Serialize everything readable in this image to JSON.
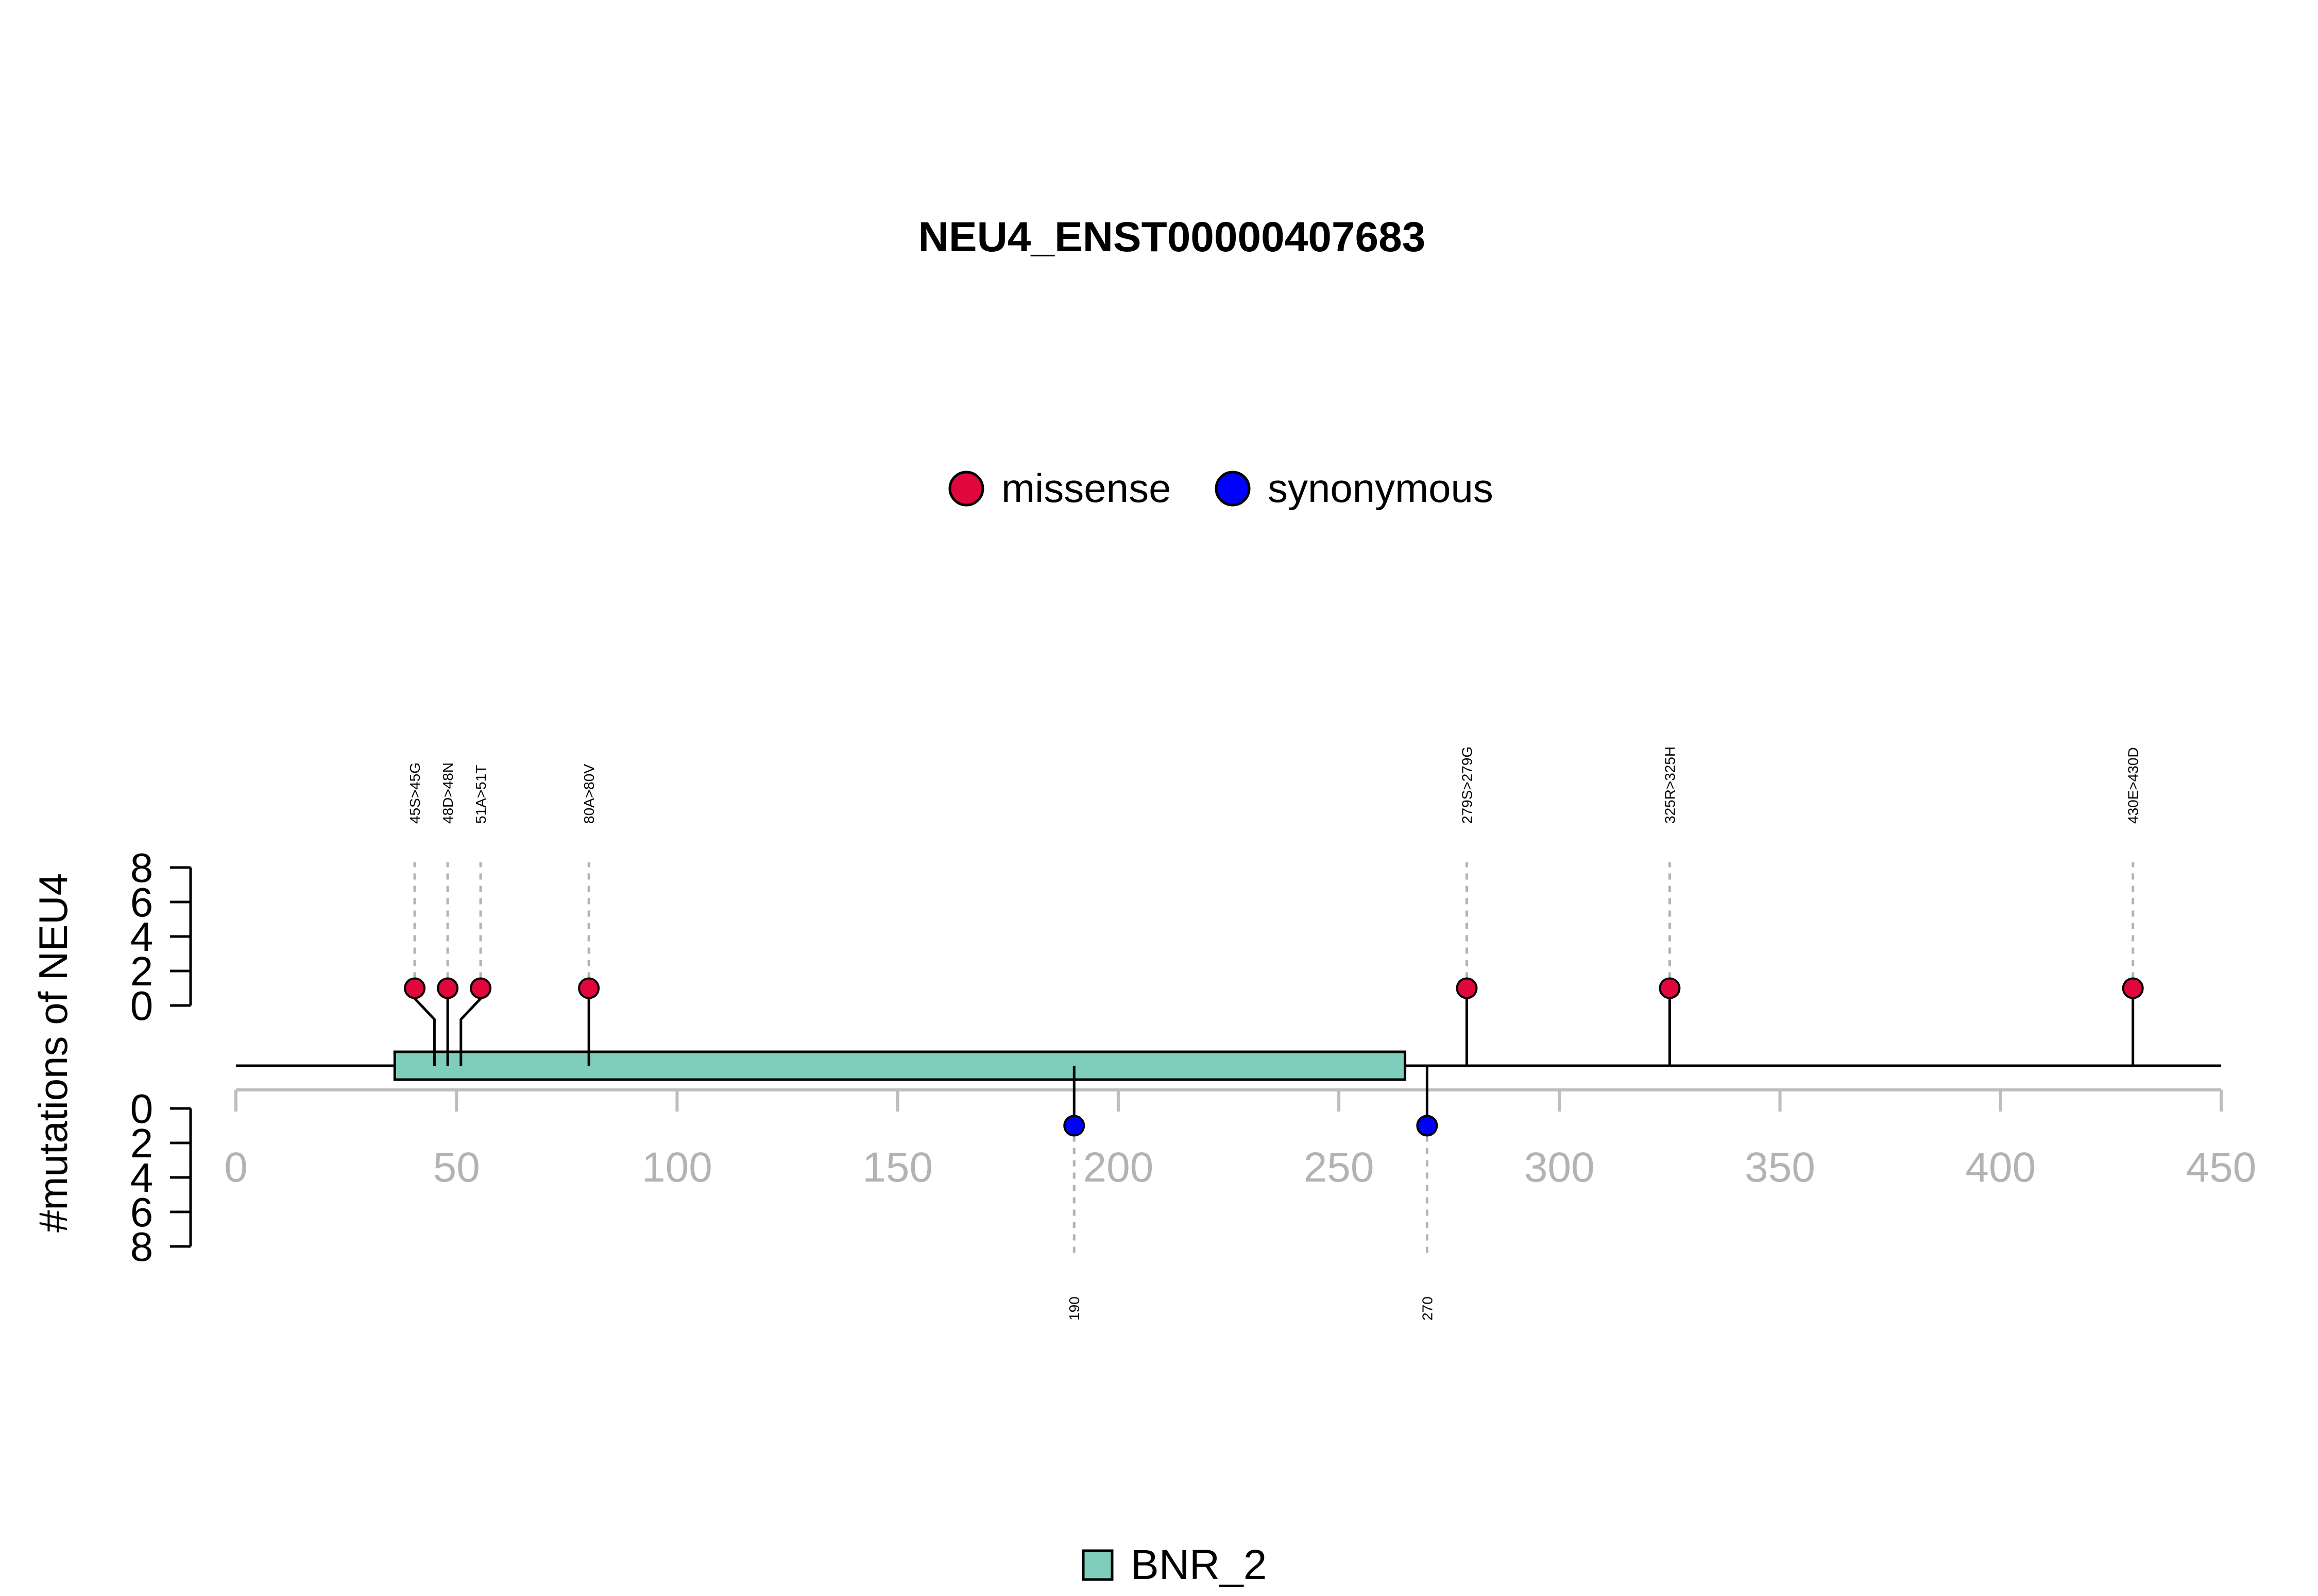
{
  "chart_data": {
    "type": "lollipop",
    "title": "NEU4_ENST00000407683",
    "ylabel": "#mutations of NEU4",
    "xlim": [
      0,
      450
    ],
    "x_ticks": [
      "0",
      "50",
      "100",
      "150",
      "200",
      "250",
      "300",
      "350",
      "400",
      "450"
    ],
    "y_ticks_top": [
      "0",
      "2",
      "4",
      "6",
      "8"
    ],
    "y_ticks_bottom": [
      "0",
      "2",
      "4",
      "6",
      "8"
    ],
    "ylim": [
      0,
      8
    ],
    "legend": [
      {
        "label": "missense",
        "color": "#e0073d"
      },
      {
        "label": "synonymous",
        "color": "#0000ff"
      }
    ],
    "domains": [
      {
        "name": "BNR_2",
        "start": 36,
        "end": 265,
        "color": "#7fcdbb"
      }
    ],
    "mutations_top": [
      {
        "pos": 45,
        "label": "45S>45G",
        "type": "missense",
        "count": 1
      },
      {
        "pos": 48,
        "label": "48D>48N",
        "type": "missense",
        "count": 1
      },
      {
        "pos": 51,
        "label": "51A>51T",
        "type": "missense",
        "count": 1
      },
      {
        "pos": 80,
        "label": "80A>80V",
        "type": "missense",
        "count": 1
      },
      {
        "pos": 279,
        "label": "279S>279G",
        "type": "missense",
        "count": 1
      },
      {
        "pos": 325,
        "label": "325R>325H",
        "type": "missense",
        "count": 1
      },
      {
        "pos": 430,
        "label": "430E>430D",
        "type": "missense",
        "count": 1
      }
    ],
    "mutations_bottom": [
      {
        "pos": 190,
        "label": "190",
        "type": "synonymous",
        "count": 1
      },
      {
        "pos": 270,
        "label": "270",
        "type": "synonymous",
        "count": 1
      }
    ]
  }
}
